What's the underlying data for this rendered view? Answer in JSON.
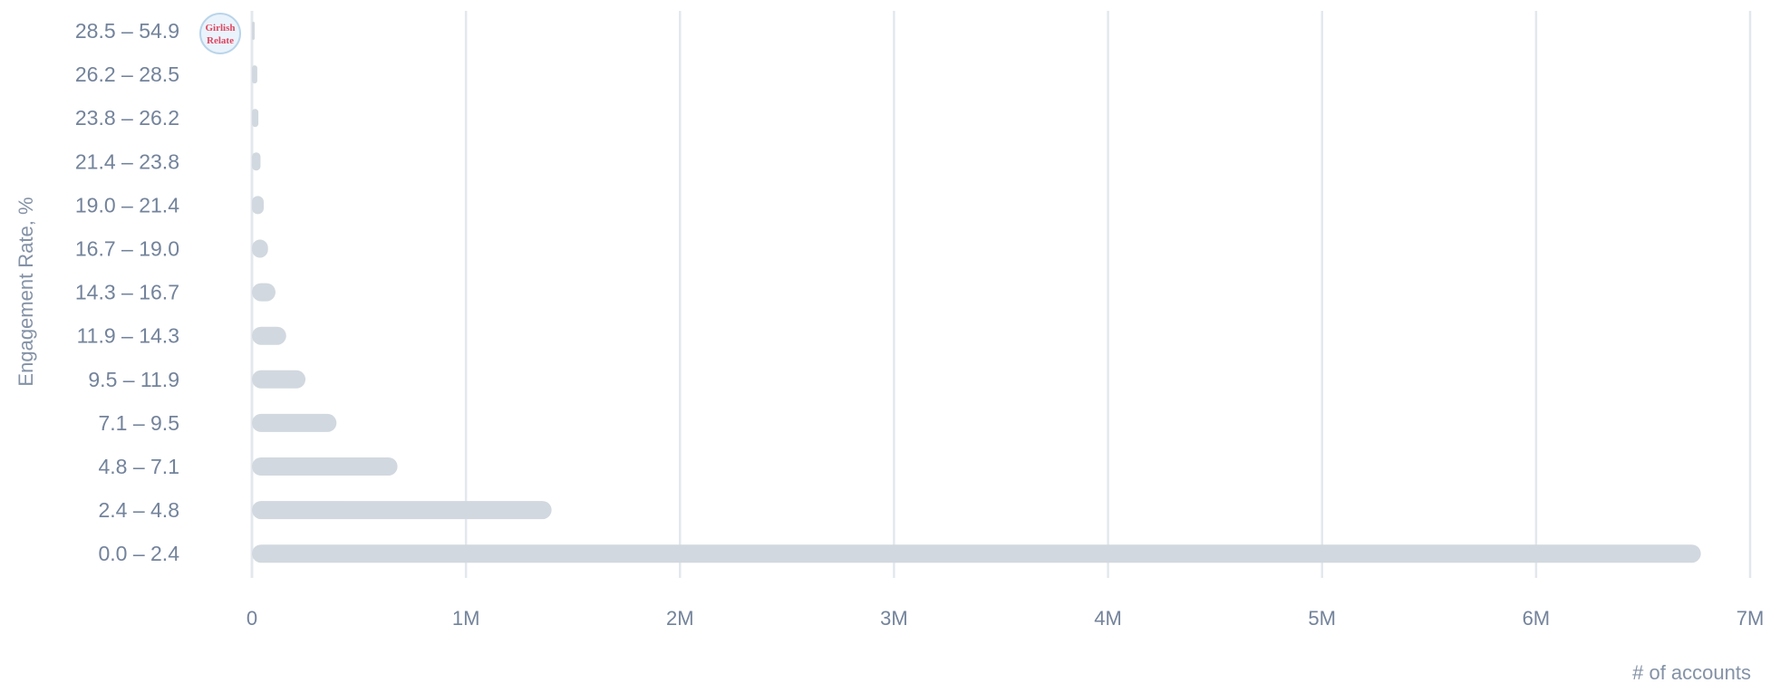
{
  "chart_data": {
    "type": "bar",
    "orientation": "horizontal",
    "title": "",
    "xlabel": "# of accounts",
    "ylabel": "Engagement Rate, %",
    "categories": [
      "28.5 – 54.9",
      "26.2 – 28.5",
      "23.8 – 26.2",
      "21.4 – 23.8",
      "19.0 – 21.4",
      "16.7 – 19.0",
      "14.3 – 16.7",
      "11.9 – 14.3",
      "9.5 – 11.9",
      "7.1 – 9.5",
      "4.8 – 7.1",
      "2.4 – 4.8",
      "0.0 – 2.4"
    ],
    "values": [
      5000,
      25000,
      30000,
      40000,
      55000,
      75000,
      110000,
      160000,
      250000,
      395000,
      680000,
      1400000,
      6770000
    ],
    "xlim": [
      0,
      7000000
    ],
    "xticks": [
      0,
      1000000,
      2000000,
      3000000,
      4000000,
      5000000,
      6000000,
      7000000
    ],
    "xtick_labels": [
      "0",
      "1M",
      "2M",
      "3M",
      "4M",
      "5M",
      "6M",
      "7M"
    ],
    "grid": "vertical",
    "legend": "none",
    "bar_color": "#d1d8df",
    "grid_color": "#e3e8ee",
    "highlight": {
      "category": "28.5 – 54.9",
      "badge_line1": "Girlish",
      "badge_line2": "Relate",
      "badge_border_color": "#b9d4ea",
      "badge_fill_color": "#eaf3fb",
      "badge_text_color": "#e0455f"
    }
  }
}
